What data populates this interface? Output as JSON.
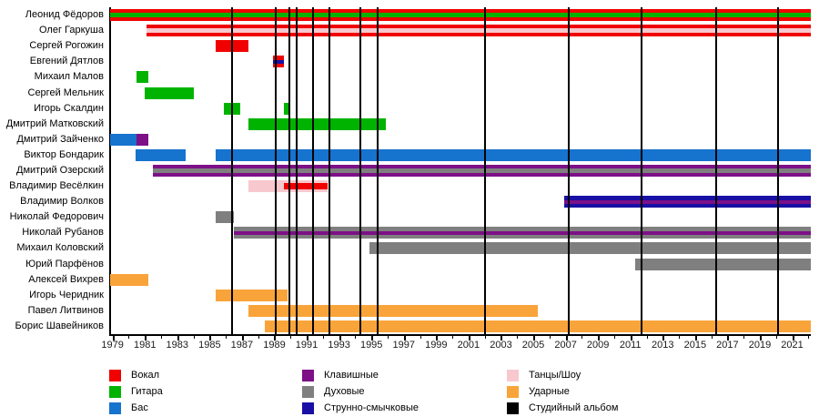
{
  "chart_data": {
    "type": "timeline",
    "description": "Gantt-style timeline of band members, their roles (colored bars) and studio albums (black vertical lines)",
    "x_axis": {
      "min": 1978.85,
      "max": 2022.15,
      "major_tick_years": [
        1979,
        1981,
        1983,
        1985,
        1987,
        1989,
        1991,
        1993,
        1995,
        1997,
        1999,
        2001,
        2003,
        2005,
        2007,
        2009,
        2011,
        2013,
        2015,
        2017,
        2019,
        2021
      ],
      "tick_labels": [
        "1979",
        "1981",
        "1983",
        "1985",
        "1987",
        "1989",
        "1991",
        "1993",
        "1995",
        "1997",
        "1999",
        "2001",
        "2003",
        "2005",
        "2007",
        "2009",
        "2011",
        "2013",
        "2015",
        "2017",
        "2019",
        "2021"
      ],
      "minor_tick_step": 1,
      "grid": false
    },
    "roles": {
      "vocal": {
        "label": "Вокал",
        "color": "#f00000"
      },
      "guitar": {
        "label": "Гитара",
        "color": "#00b300"
      },
      "bass": {
        "label": "Бас",
        "color": "#1673ce"
      },
      "keys": {
        "label": "Клавишные",
        "color": "#7d0f87"
      },
      "winds": {
        "label": "Духовые",
        "color": "#7f7f7f"
      },
      "strings": {
        "label": "Струнно-смычковые",
        "color": "#180fa5"
      },
      "dance": {
        "label": "Танцы/Шоу",
        "color": "#f7c8ce"
      },
      "drums": {
        "label": "Ударные",
        "color": "#f9a43a"
      },
      "album": {
        "label": "Студийный альбом",
        "color": "#000000"
      }
    },
    "legend_columns": [
      [
        "vocal",
        "guitar",
        "bass"
      ],
      [
        "keys",
        "winds",
        "strings"
      ],
      [
        "dance",
        "drums",
        "album"
      ]
    ],
    "album_years": [
      1986.4,
      1989.1,
      1989.9,
      1990.4,
      1991.4,
      1992.4,
      1994.3,
      1995.4,
      2002.0,
      2007.2,
      2011.7,
      2016.3,
      2020.1
    ],
    "members": [
      {
        "name": "Леонид Фёдоров",
        "bars": [
          {
            "start": 1978.85,
            "end": 2022.15,
            "lanes": [
              "vocal",
              "guitar",
              "vocal"
            ]
          }
        ]
      },
      {
        "name": "Олег Гаркуша",
        "bars": [
          {
            "start": 1981.1,
            "end": 2022.15,
            "lanes": [
              "vocal",
              "dance",
              "vocal"
            ]
          }
        ]
      },
      {
        "name": "Сергей Рогожин",
        "bars": [
          {
            "start": 1985.4,
            "end": 1987.4,
            "lanes": [
              "vocal"
            ]
          }
        ]
      },
      {
        "name": "Евгений Дятлов",
        "bars": [
          {
            "start": 1988.9,
            "end": 1989.6,
            "lanes": [
              "vocal",
              "strings",
              "vocal"
            ]
          }
        ]
      },
      {
        "name": "Михаил Малов",
        "bars": [
          {
            "start": 1980.5,
            "end": 1981.2,
            "lanes": [
              "guitar"
            ]
          }
        ]
      },
      {
        "name": "Сергей Мельник",
        "bars": [
          {
            "start": 1981.0,
            "end": 1984.0,
            "lanes": [
              "guitar"
            ]
          }
        ]
      },
      {
        "name": "Игорь Скалдин",
        "bars": [
          {
            "start": 1985.9,
            "end": 1986.9,
            "lanes": [
              "guitar"
            ]
          },
          {
            "start": 1989.6,
            "end": 1990.0,
            "lanes": [
              "guitar"
            ]
          }
        ]
      },
      {
        "name": "Дмитрий Матковский",
        "bars": [
          {
            "start": 1987.4,
            "end": 1995.9,
            "lanes": [
              "guitar"
            ]
          }
        ]
      },
      {
        "name": "Дмитрий Зайченко",
        "bars": [
          {
            "start": 1978.85,
            "end": 1980.5,
            "lanes": [
              "bass"
            ]
          },
          {
            "start": 1980.5,
            "end": 1981.2,
            "lanes": [
              "keys"
            ]
          }
        ]
      },
      {
        "name": "Виктор Бондарик",
        "bars": [
          {
            "start": 1980.4,
            "end": 1983.5,
            "lanes": [
              "bass"
            ]
          },
          {
            "start": 1985.4,
            "end": 2022.15,
            "lanes": [
              "bass"
            ]
          }
        ]
      },
      {
        "name": "Дмитрий Озерский",
        "bars": [
          {
            "start": 1981.5,
            "end": 2022.15,
            "lanes": [
              "keys",
              "winds",
              "keys"
            ]
          }
        ]
      },
      {
        "name": "Владимир Весёлкин",
        "bars": [
          {
            "start": 1987.4,
            "end": 1992.3,
            "lanes": [
              "dance"
            ]
          },
          {
            "start": 1989.6,
            "end": 1992.3,
            "lanes": [
              "vocal"
            ],
            "inset": true
          }
        ]
      },
      {
        "name": "Владимир Волков",
        "bars": [
          {
            "start": 2006.9,
            "end": 2022.15,
            "lanes": [
              "strings",
              "keys",
              "strings"
            ]
          }
        ]
      },
      {
        "name": "Николай Федорович",
        "bars": [
          {
            "start": 1985.4,
            "end": 1986.5,
            "lanes": [
              "winds"
            ]
          }
        ]
      },
      {
        "name": "Николай Рубанов",
        "bars": [
          {
            "start": 1986.5,
            "end": 2022.15,
            "lanes": [
              "winds",
              "keys",
              "winds"
            ]
          }
        ]
      },
      {
        "name": "Михаил Коловский",
        "bars": [
          {
            "start": 1994.9,
            "end": 2022.15,
            "lanes": [
              "winds"
            ]
          }
        ]
      },
      {
        "name": "Юрий Парфёнов",
        "bars": [
          {
            "start": 2011.3,
            "end": 2022.15,
            "lanes": [
              "winds"
            ]
          }
        ]
      },
      {
        "name": "Алексей Вихрев",
        "bars": [
          {
            "start": 1978.85,
            "end": 1981.2,
            "lanes": [
              "drums"
            ]
          }
        ]
      },
      {
        "name": "Игорь Черидник",
        "bars": [
          {
            "start": 1985.4,
            "end": 1989.8,
            "lanes": [
              "drums"
            ]
          }
        ]
      },
      {
        "name": "Павел Литвинов",
        "bars": [
          {
            "start": 1987.4,
            "end": 2005.3,
            "lanes": [
              "drums"
            ]
          }
        ]
      },
      {
        "name": "Борис Шавейников",
        "bars": [
          {
            "start": 1988.4,
            "end": 2022.15,
            "lanes": [
              "drums"
            ]
          }
        ]
      }
    ],
    "legend_position": "bottom"
  }
}
